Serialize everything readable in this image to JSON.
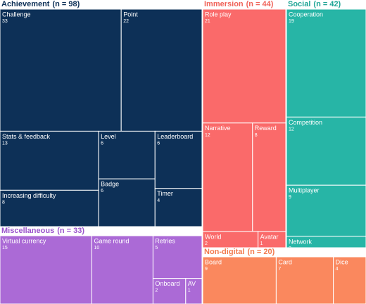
{
  "chart_data": {
    "type": "treemap",
    "groups": [
      {
        "name": "Achievement",
        "value": 98,
        "value_label": "(n = 98)",
        "color": "#0d3057",
        "title_color": "#0d3057",
        "items": [
          {
            "name": "Challenge",
            "value": 33
          },
          {
            "name": "Point",
            "value": 22
          },
          {
            "name": "Stats & feedback",
            "value": 13
          },
          {
            "name": "Increasing difficulty",
            "value": 8
          },
          {
            "name": "Level",
            "value": 6
          },
          {
            "name": "Badge",
            "value": 6
          },
          {
            "name": "Leaderboard",
            "value": 6
          },
          {
            "name": "Timer",
            "value": 4
          }
        ]
      },
      {
        "name": "Immersion",
        "value": 44,
        "value_label": "(n = 44)",
        "color": "#fa6a6a",
        "title_color": "#f0645a",
        "items": [
          {
            "name": "Role play",
            "value": 21
          },
          {
            "name": "Narrative",
            "value": 12
          },
          {
            "name": "Reward",
            "value": 8
          },
          {
            "name": "World",
            "value": 2
          },
          {
            "name": "Avatar",
            "value": 1
          }
        ]
      },
      {
        "name": "Social",
        "value": 42,
        "value_label": "(n = 42)",
        "color": "#27b5a6",
        "title_color": "#1fa596",
        "items": [
          {
            "name": "Cooperation",
            "value": 19
          },
          {
            "name": "Competition",
            "value": 12
          },
          {
            "name": "Multiplayer",
            "value": 9
          },
          {
            "name": "Network",
            "value": 2
          }
        ]
      },
      {
        "name": "Miscellaneous",
        "value": 33,
        "value_label": "(n = 33)",
        "color": "#ab6ad6",
        "title_color": "#9b55cc",
        "items": [
          {
            "name": "Virtual currency",
            "value": 15
          },
          {
            "name": "Game round",
            "value": 10
          },
          {
            "name": "Retries",
            "value": 5
          },
          {
            "name": "Onboard",
            "value": 2
          },
          {
            "name": "AV",
            "value": 1
          }
        ]
      },
      {
        "name": "Non-digital",
        "value": 20,
        "value_label": "(n = 20)",
        "color": "#fa885e",
        "title_color": "#f27a4e",
        "items": [
          {
            "name": "Board",
            "value": 9
          },
          {
            "name": "Card",
            "value": 7
          },
          {
            "name": "Dice",
            "value": 4
          }
        ]
      }
    ]
  }
}
